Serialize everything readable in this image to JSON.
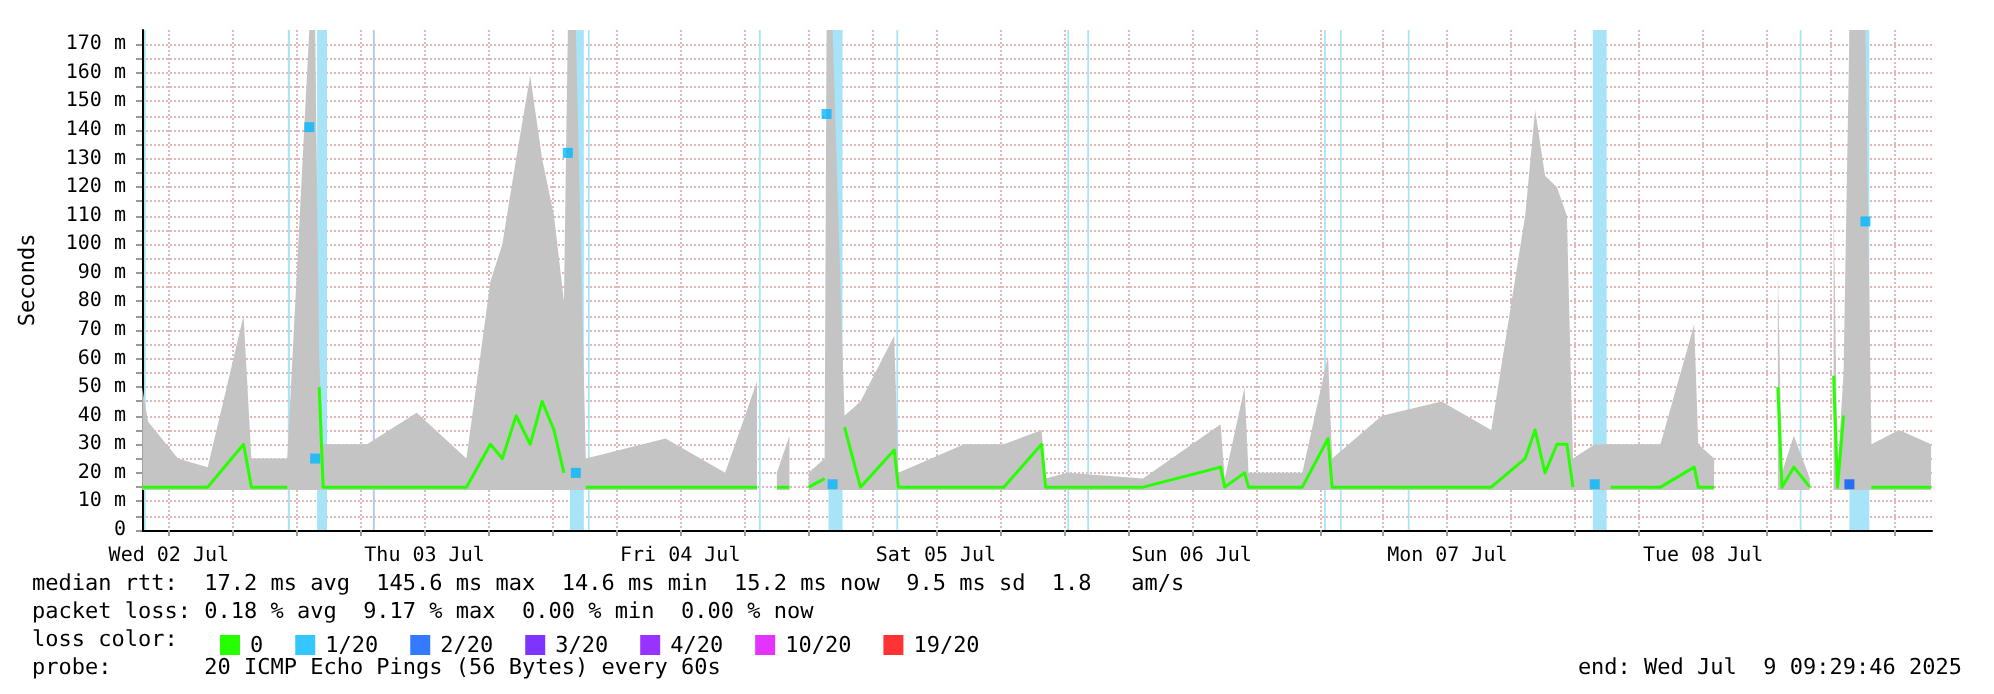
{
  "chart_data": {
    "type": "line",
    "ylabel": "Seconds",
    "legend_title": "loss color:",
    "legend": "bottom left",
    "grid": true,
    "annotations": [
      "median rtt:  17.2 ms avg  145.6 ms max  14.6 ms min  15.2 ms now  9.5 ms sd  1.8   am/s",
      "packet loss: 0.18 % avg  9.17 % max  0.00 % min  0.00 % now",
      "probe:       20 ICMP Echo Pings (56 Bytes) every 60s",
      "end: Wed Jul  9 09:29:46 2025"
    ],
    "xlim": [
      "2025-07-02T09:29",
      "2025-07-09T09:29"
    ],
    "xticks": [
      {
        "value": "2025-07-02T12:00",
        "label": "Wed 02 Jul"
      },
      {
        "value": "2025-07-02T18:00",
        "label": null
      },
      {
        "value": "2025-07-03T00:00",
        "label": null
      },
      {
        "value": "2025-07-03T06:00",
        "label": null
      },
      {
        "value": "2025-07-03T12:00",
        "label": "Thu 03 Jul"
      },
      {
        "value": "2025-07-03T18:00",
        "label": null
      },
      {
        "value": "2025-07-04T00:00",
        "label": null
      },
      {
        "value": "2025-07-04T06:00",
        "label": null
      },
      {
        "value": "2025-07-04T12:00",
        "label": "Fri 04 Jul"
      },
      {
        "value": "2025-07-04T18:00",
        "label": null
      },
      {
        "value": "2025-07-05T00:00",
        "label": null
      },
      {
        "value": "2025-07-05T06:00",
        "label": null
      },
      {
        "value": "2025-07-05T12:00",
        "label": "Sat 05 Jul"
      },
      {
        "value": "2025-07-05T18:00",
        "label": null
      },
      {
        "value": "2025-07-06T00:00",
        "label": null
      },
      {
        "value": "2025-07-06T06:00",
        "label": null
      },
      {
        "value": "2025-07-06T12:00",
        "label": "Sun 06 Jul"
      },
      {
        "value": "2025-07-06T18:00",
        "label": null
      },
      {
        "value": "2025-07-07T00:00",
        "label": null
      },
      {
        "value": "2025-07-07T06:00",
        "label": null
      },
      {
        "value": "2025-07-07T12:00",
        "label": "Mon 07 Jul"
      },
      {
        "value": "2025-07-07T18:00",
        "label": null
      },
      {
        "value": "2025-07-08T00:00",
        "label": null
      },
      {
        "value": "2025-07-08T06:00",
        "label": null
      },
      {
        "value": "2025-07-08T12:00",
        "label": "Tue 08 Jul"
      },
      {
        "value": "2025-07-08T18:00",
        "label": null
      },
      {
        "value": "2025-07-09T00:00",
        "label": null
      },
      {
        "value": "2025-07-09T06:00",
        "label": null
      }
    ],
    "ylim": [
      0,
      175
    ],
    "yticks": [
      {
        "value": 0,
        "label": "0"
      },
      {
        "value": 5,
        "label": null
      },
      {
        "value": 10,
        "label": "10 m"
      },
      {
        "value": 15,
        "label": null
      },
      {
        "value": 20,
        "label": "20 m"
      },
      {
        "value": 25,
        "label": null
      },
      {
        "value": 30,
        "label": "30 m"
      },
      {
        "value": 35,
        "label": null
      },
      {
        "value": 40,
        "label": "40 m"
      },
      {
        "value": 45,
        "label": null
      },
      {
        "value": 50,
        "label": "50 m"
      },
      {
        "value": 55,
        "label": null
      },
      {
        "value": 60,
        "label": "60 m"
      },
      {
        "value": 65,
        "label": null
      },
      {
        "value": 70,
        "label": "70 m"
      },
      {
        "value": 75,
        "label": null
      },
      {
        "value": 80,
        "label": "80 m"
      },
      {
        "value": 85,
        "label": null
      },
      {
        "value": 90,
        "label": "90 m"
      },
      {
        "value": 95,
        "label": null
      },
      {
        "value": 100,
        "label": "100 m"
      },
      {
        "value": 105,
        "label": null
      },
      {
        "value": 110,
        "label": "110 m"
      },
      {
        "value": 115,
        "label": null
      },
      {
        "value": 120,
        "label": "120 m"
      },
      {
        "value": 125,
        "label": null
      },
      {
        "value": 130,
        "label": "130 m"
      },
      {
        "value": 135,
        "label": null
      },
      {
        "value": 140,
        "label": "140 m"
      },
      {
        "value": 145,
        "label": null
      },
      {
        "value": 150,
        "label": "150 m"
      },
      {
        "value": 155,
        "label": null
      },
      {
        "value": 160,
        "label": "160 m"
      },
      {
        "value": 165,
        "label": null
      },
      {
        "value": 170,
        "label": "170 m"
      }
    ],
    "bands": [
      {
        "axis": "x",
        "from": "2025-07-02T09:40",
        "to": "2025-07-02T09:50",
        "color": "#a8e4f8"
      },
      {
        "axis": "x",
        "from": "2025-07-02T23:10",
        "to": "2025-07-02T23:22",
        "color": "#a8e4f8"
      },
      {
        "axis": "x",
        "from": "2025-07-03T01:55",
        "to": "2025-07-03T02:51",
        "color": "#a8e4f8"
      },
      {
        "axis": "x",
        "from": "2025-07-03T07:09",
        "to": "2025-07-03T07:20",
        "color": "#b4c8f4"
      },
      {
        "axis": "x",
        "from": "2025-07-04T01:39",
        "to": "2025-07-04T02:57",
        "color": "#a8e4f8"
      },
      {
        "axis": "x",
        "from": "2025-07-04T03:20",
        "to": "2025-07-04T03:30",
        "color": "#a8e4f8"
      },
      {
        "axis": "x",
        "from": "2025-07-04T19:23",
        "to": "2025-07-04T19:33",
        "color": "#a8e4f8"
      },
      {
        "axis": "x",
        "from": "2025-07-05T01:55",
        "to": "2025-07-05T03:14",
        "color": "#a8e4f8"
      },
      {
        "axis": "x",
        "from": "2025-07-05T08:17",
        "to": "2025-07-05T08:27",
        "color": "#a8e4f8"
      },
      {
        "axis": "x",
        "from": "2025-07-06T00:20",
        "to": "2025-07-06T00:30",
        "color": "#a8e4f8"
      },
      {
        "axis": "x",
        "from": "2025-07-06T02:12",
        "to": "2025-07-06T02:22",
        "color": "#a8e4f8"
      },
      {
        "axis": "x",
        "from": "2025-07-07T00:26",
        "to": "2025-07-07T00:36",
        "color": "#a8e4f8"
      },
      {
        "axis": "x",
        "from": "2025-07-07T01:55",
        "to": "2025-07-07T02:05",
        "color": "#a8e4f8"
      },
      {
        "axis": "x",
        "from": "2025-07-07T08:17",
        "to": "2025-07-07T08:27",
        "color": "#a8e4f8"
      },
      {
        "axis": "x",
        "from": "2025-07-08T01:39",
        "to": "2025-07-08T02:57",
        "color": "#a8e4f8"
      },
      {
        "axis": "x",
        "from": "2025-07-08T21:04",
        "to": "2025-07-08T21:14",
        "color": "#a8e4f8"
      },
      {
        "axis": "x",
        "from": "2025-07-09T01:44",
        "to": "2025-07-09T03:36",
        "color": "#a8e4f8"
      }
    ],
    "series": [
      {
        "name": "0",
        "color": "#26ff00",
        "x": [
          "2025-07-02T09:30",
          "2025-07-02T10:03",
          "2025-07-02T12:51",
          "2025-07-02T15:39",
          "2025-07-02T19:01",
          "2025-07-02T19:45",
          "2025-07-02T23:07",
          "2025-07-03T01:11",
          "2025-07-03T01:44",
          "2025-07-03T02:07",
          "2025-07-03T02:29",
          "2025-07-03T06:36",
          "2025-07-03T11:16",
          "2025-07-03T15:56",
          "2025-07-03T18:11",
          "2025-07-03T19:18",
          "2025-07-03T20:36",
          "2025-07-03T21:55",
          "2025-07-03T23:02",
          "2025-07-04T00:09",
          "2025-07-04T01:05",
          "2025-07-04T01:27",
          "2025-07-04T02:12",
          "2025-07-04T03:08",
          "2025-07-04T10:37",
          "2025-07-04T16:13",
          "2025-07-04T19:12",
          "2025-07-04T19:35",
          "2025-07-04T21:04",
          "2025-07-04T22:15",
          "2025-07-04T22:30",
          "2025-07-05T00:03",
          "2025-07-05T01:33",
          "2025-07-05T01:44",
          "2025-07-05T02:18",
          "2025-07-05T03:25",
          "2025-07-05T04:55",
          "2025-07-05T08:05",
          "2025-07-05T08:28",
          "2025-07-05T14:38",
          "2025-07-05T18:22",
          "2025-07-05T21:55",
          "2025-07-05T22:17",
          "2025-07-06T00:20",
          "2025-07-06T07:26",
          "2025-07-06T14:43",
          "2025-07-06T15:06",
          "2025-07-06T16:58",
          "2025-07-06T17:20",
          "2025-07-06T22:23",
          "2025-07-07T00:48",
          "2025-07-07T01:11",
          "2025-07-07T05:51",
          "2025-07-07T11:27",
          "2025-07-07T16:07",
          "2025-07-07T19:18",
          "2025-07-07T20:14",
          "2025-07-07T21:10",
          "2025-07-07T22:17",
          "2025-07-07T23:13",
          "2025-07-07T23:47",
          "2025-07-08T01:50",
          "2025-07-08T03:20",
          "2025-07-08T08:00",
          "2025-07-08T11:10",
          "2025-07-08T11:33",
          "2025-07-08T13:02",
          "2025-07-08T13:14",
          "2025-07-08T19:01",
          "2025-07-08T19:24",
          "2025-07-08T20:31",
          "2025-07-08T22:01",
          "2025-07-08T22:34",
          "2025-07-09T00:15",
          "2025-07-09T00:37",
          "2025-07-09T01:11",
          "2025-07-09T01:44",
          "2025-07-09T03:14",
          "2025-07-09T03:48",
          "2025-07-09T06:24",
          "2025-07-09T09:24"
        ],
        "values": [
          15,
          15,
          15,
          15,
          30,
          15,
          15,
          null,
          null,
          50,
          15,
          15,
          15,
          15,
          30,
          25,
          40,
          30,
          45,
          35,
          20,
          null,
          null,
          15,
          15,
          15,
          15,
          null,
          15,
          15,
          null,
          15,
          18,
          null,
          null,
          36,
          15,
          28,
          15,
          15,
          15,
          30,
          15,
          15,
          15,
          22,
          15,
          20,
          15,
          15,
          32,
          15,
          15,
          15,
          15,
          25,
          35,
          20,
          30,
          30,
          15,
          null,
          15,
          15,
          22,
          15,
          15,
          null,
          50,
          15,
          22,
          15,
          null,
          54,
          15,
          40,
          null,
          null,
          15,
          15,
          15
        ],
        "lower": [
          14,
          14,
          14,
          14,
          14,
          14,
          14,
          14,
          14,
          14,
          14,
          14,
          14,
          14,
          14,
          14,
          14,
          14,
          14,
          14,
          14,
          14,
          14,
          14,
          14,
          14,
          14,
          null,
          14,
          14,
          null,
          14,
          14,
          14,
          14,
          14,
          14,
          14,
          14,
          14,
          14,
          14,
          14,
          14,
          14,
          14,
          14,
          14,
          14,
          14,
          14,
          14,
          14,
          14,
          14,
          14,
          14,
          14,
          14,
          14,
          14,
          14,
          14,
          14,
          14,
          14,
          14,
          null,
          14,
          14,
          14,
          14,
          null,
          14,
          14,
          14,
          14,
          14,
          14,
          14,
          14
        ],
        "upper": [
          50,
          38,
          25,
          22,
          75,
          25,
          25,
          175,
          175,
          60,
          30,
          30,
          41,
          25,
          87,
          100,
          130,
          159,
          130,
          110,
          80,
          175,
          175,
          25,
          32,
          20,
          52,
          null,
          20,
          33,
          null,
          20,
          25,
          175,
          175,
          40,
          45,
          68,
          20,
          30,
          30,
          35,
          18,
          20,
          18,
          37,
          18,
          50,
          20,
          20,
          61,
          25,
          40,
          45,
          35,
          110,
          147,
          124,
          120,
          110,
          25,
          30,
          30,
          30,
          72,
          30,
          25,
          null,
          91,
          20,
          33,
          18,
          null,
          115,
          20,
          55,
          175,
          175,
          30,
          35,
          30
        ]
      },
      {
        "name": "1/20",
        "type": "scatter",
        "marker": "square",
        "color": "#00b8ff",
        "x": [
          "2025-07-03T01:11",
          "2025-07-03T01:44",
          "2025-07-04T01:27",
          "2025-07-04T02:12",
          "2025-07-05T01:44",
          "2025-07-05T02:18",
          "2025-07-08T01:50",
          "2025-07-09T03:14"
        ],
        "values": [
          141,
          25,
          132,
          20,
          145.6,
          16,
          16,
          108
        ]
      },
      {
        "name": "2/20",
        "type": "scatter",
        "marker": "square",
        "color": "#0059ff",
        "x": [
          "2025-07-09T01:44"
        ],
        "values": [
          16
        ]
      },
      {
        "name": "3/20",
        "type": "scatter",
        "marker": "square",
        "color": "#5e00ff"
      },
      {
        "name": "4/20",
        "type": "scatter",
        "marker": "square",
        "color": "#7e00ff"
      },
      {
        "name": "10/20",
        "type": "scatter",
        "marker": "square",
        "color": "#dd00ff"
      },
      {
        "name": "19/20",
        "type": "scatter",
        "marker": "square",
        "color": "#ff0000"
      }
    ]
  }
}
